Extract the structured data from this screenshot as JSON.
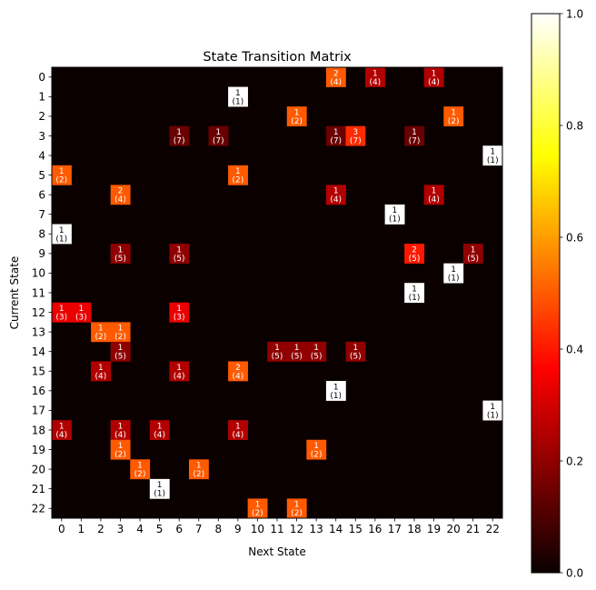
{
  "chart_data": {
    "type": "heatmap",
    "title": "State Transition Matrix",
    "xlabel": "Next State",
    "ylabel": "Current State",
    "x_ticks": [
      "0",
      "1",
      "2",
      "3",
      "4",
      "5",
      "6",
      "7",
      "8",
      "9",
      "10",
      "11",
      "12",
      "13",
      "14",
      "15",
      "16",
      "17",
      "18",
      "19",
      "20",
      "21",
      "22"
    ],
    "y_ticks": [
      "0",
      "1",
      "2",
      "3",
      "4",
      "5",
      "6",
      "7",
      "8",
      "9",
      "10",
      "11",
      "12",
      "13",
      "14",
      "15",
      "16",
      "17",
      "18",
      "19",
      "20",
      "21",
      "22"
    ],
    "colormap": "hot",
    "vmin": 0,
    "vmax": 1,
    "colorbar_ticks": [
      "0.0",
      "0.2",
      "0.4",
      "0.6",
      "0.8",
      "1.0"
    ],
    "row_totals": [
      4,
      1,
      2,
      7,
      1,
      2,
      4,
      1,
      1,
      5,
      1,
      1,
      3,
      2,
      5,
      4,
      1,
      1,
      4,
      2,
      2,
      1,
      2
    ],
    "cells": [
      {
        "row": 0,
        "col": 14,
        "count": "2",
        "total": "(4)"
      },
      {
        "row": 0,
        "col": 16,
        "count": "1",
        "total": "(4)"
      },
      {
        "row": 0,
        "col": 19,
        "count": "1",
        "total": "(4)"
      },
      {
        "row": 1,
        "col": 9,
        "count": "1",
        "total": "(1)"
      },
      {
        "row": 2,
        "col": 12,
        "count": "1",
        "total": "(2)"
      },
      {
        "row": 2,
        "col": 20,
        "count": "1",
        "total": "(2)"
      },
      {
        "row": 3,
        "col": 6,
        "count": "1",
        "total": "(7)"
      },
      {
        "row": 3,
        "col": 8,
        "count": "1",
        "total": "(7)"
      },
      {
        "row": 3,
        "col": 14,
        "count": "1",
        "total": "(7)"
      },
      {
        "row": 3,
        "col": 15,
        "count": "3",
        "total": "(7)"
      },
      {
        "row": 3,
        "col": 18,
        "count": "1",
        "total": "(7)"
      },
      {
        "row": 4,
        "col": 22,
        "count": "1",
        "total": "(1)"
      },
      {
        "row": 5,
        "col": 0,
        "count": "1",
        "total": "(2)"
      },
      {
        "row": 5,
        "col": 9,
        "count": "1",
        "total": "(2)"
      },
      {
        "row": 6,
        "col": 3,
        "count": "2",
        "total": "(4)"
      },
      {
        "row": 6,
        "col": 14,
        "count": "1",
        "total": "(4)"
      },
      {
        "row": 6,
        "col": 19,
        "count": "1",
        "total": "(4)"
      },
      {
        "row": 7,
        "col": 17,
        "count": "1",
        "total": "(1)"
      },
      {
        "row": 8,
        "col": 0,
        "count": "1",
        "total": "(1)"
      },
      {
        "row": 9,
        "col": 3,
        "count": "1",
        "total": "(5)"
      },
      {
        "row": 9,
        "col": 6,
        "count": "1",
        "total": "(5)"
      },
      {
        "row": 9,
        "col": 18,
        "count": "2",
        "total": "(5)"
      },
      {
        "row": 9,
        "col": 21,
        "count": "1",
        "total": "(5)"
      },
      {
        "row": 10,
        "col": 20,
        "count": "1",
        "total": "(1)"
      },
      {
        "row": 11,
        "col": 18,
        "count": "1",
        "total": "(1)"
      },
      {
        "row": 12,
        "col": 0,
        "count": "1",
        "total": "(3)"
      },
      {
        "row": 12,
        "col": 1,
        "count": "1",
        "total": "(3)"
      },
      {
        "row": 12,
        "col": 6,
        "count": "1",
        "total": "(3)"
      },
      {
        "row": 13,
        "col": 2,
        "count": "1",
        "total": "(2)"
      },
      {
        "row": 13,
        "col": 3,
        "count": "1",
        "total": "(2)"
      },
      {
        "row": 14,
        "col": 3,
        "count": "1",
        "total": "(5)"
      },
      {
        "row": 14,
        "col": 11,
        "count": "1",
        "total": "(5)"
      },
      {
        "row": 14,
        "col": 12,
        "count": "1",
        "total": "(5)"
      },
      {
        "row": 14,
        "col": 13,
        "count": "1",
        "total": "(5)"
      },
      {
        "row": 14,
        "col": 15,
        "count": "1",
        "total": "(5)"
      },
      {
        "row": 15,
        "col": 2,
        "count": "1",
        "total": "(4)"
      },
      {
        "row": 15,
        "col": 6,
        "count": "1",
        "total": "(4)"
      },
      {
        "row": 15,
        "col": 9,
        "count": "2",
        "total": "(4)"
      },
      {
        "row": 16,
        "col": 14,
        "count": "1",
        "total": "(1)"
      },
      {
        "row": 17,
        "col": 22,
        "count": "1",
        "total": "(1)"
      },
      {
        "row": 18,
        "col": 0,
        "count": "1",
        "total": "(4)"
      },
      {
        "row": 18,
        "col": 3,
        "count": "1",
        "total": "(4)"
      },
      {
        "row": 18,
        "col": 5,
        "count": "1",
        "total": "(4)"
      },
      {
        "row": 18,
        "col": 9,
        "count": "1",
        "total": "(4)"
      },
      {
        "row": 19,
        "col": 3,
        "count": "1",
        "total": "(2)"
      },
      {
        "row": 19,
        "col": 13,
        "count": "1",
        "total": "(2)"
      },
      {
        "row": 20,
        "col": 4,
        "count": "1",
        "total": "(2)"
      },
      {
        "row": 20,
        "col": 7,
        "count": "1",
        "total": "(2)"
      },
      {
        "row": 21,
        "col": 5,
        "count": "1",
        "total": "(1)"
      },
      {
        "row": 22,
        "col": 10,
        "count": "1",
        "total": "(2)"
      },
      {
        "row": 22,
        "col": 12,
        "count": "1",
        "total": "(2)"
      }
    ]
  }
}
